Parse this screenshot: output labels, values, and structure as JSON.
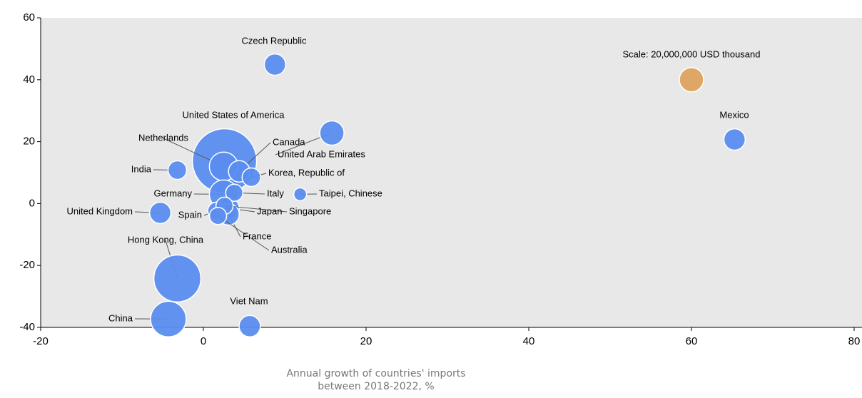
{
  "chart_data": {
    "type": "bubble",
    "x_label": "Annual growth of countries' imports between 2018-2022, %",
    "xlim": [
      -20,
      80
    ],
    "ylim": [
      -40,
      60
    ],
    "xticks": [
      -20,
      0,
      20,
      40,
      60,
      80
    ],
    "yticks": [
      -40,
      -20,
      0,
      20,
      40,
      60
    ],
    "color": "#5b8def",
    "scale_color": "#dea766",
    "series": [
      {
        "name": "United States of America",
        "x": 2.6,
        "y": 13.8,
        "size": 140000000
      },
      {
        "name": "Hong Kong, China",
        "x": -3.2,
        "y": -24.2,
        "size": 75000000
      },
      {
        "name": "China",
        "x": -4.3,
        "y": -37.3,
        "size": 43000000
      },
      {
        "name": "Netherlands",
        "x": 2.5,
        "y": 12,
        "size": 28000000
      },
      {
        "name": "Germany",
        "x": 2.5,
        "y": 3,
        "size": 28000000
      },
      {
        "name": "United Arab Emirates",
        "x": 15.8,
        "y": 22.8,
        "size": 20000000
      },
      {
        "name": "Czech Republic",
        "x": 8.8,
        "y": 44.9,
        "size": 15500000
      },
      {
        "name": "Mexico",
        "x": 65.3,
        "y": 20.7,
        "size": 15500000
      },
      {
        "name": "Canada",
        "x": 4.4,
        "y": 10.4,
        "size": 15500000
      },
      {
        "name": "United Kingdom",
        "x": -5.3,
        "y": -3,
        "size": 15500000
      },
      {
        "name": "Japan",
        "x": 3.1,
        "y": -1.5,
        "size": 15500000
      },
      {
        "name": "France",
        "x": 3.1,
        "y": -3.5,
        "size": 15500000
      },
      {
        "name": "Viet Nam",
        "x": 5.7,
        "y": -39.6,
        "size": 15500000
      },
      {
        "name": "Korea, Republic of",
        "x": 5.9,
        "y": 8.5,
        "size": 11700000
      },
      {
        "name": "India",
        "x": -3.2,
        "y": 10.8,
        "size": 11700000
      },
      {
        "name": "Italy",
        "x": 3.8,
        "y": 3.5,
        "size": 10000000
      },
      {
        "name": "Spain",
        "x": 1.6,
        "y": -2.3,
        "size": 10000000
      },
      {
        "name": "Singapore",
        "x": 2.6,
        "y": -0.7,
        "size": 10000000
      },
      {
        "name": "Australia",
        "x": 1.8,
        "y": -4,
        "size": 10000000
      },
      {
        "name": "Taipei, Chinese",
        "x": 11.9,
        "y": 3,
        "size": 5600000
      }
    ],
    "scale": {
      "label": "Scale: 20,000,000 USD thousand",
      "x": 60,
      "y": 40,
      "size": 20000000
    }
  }
}
